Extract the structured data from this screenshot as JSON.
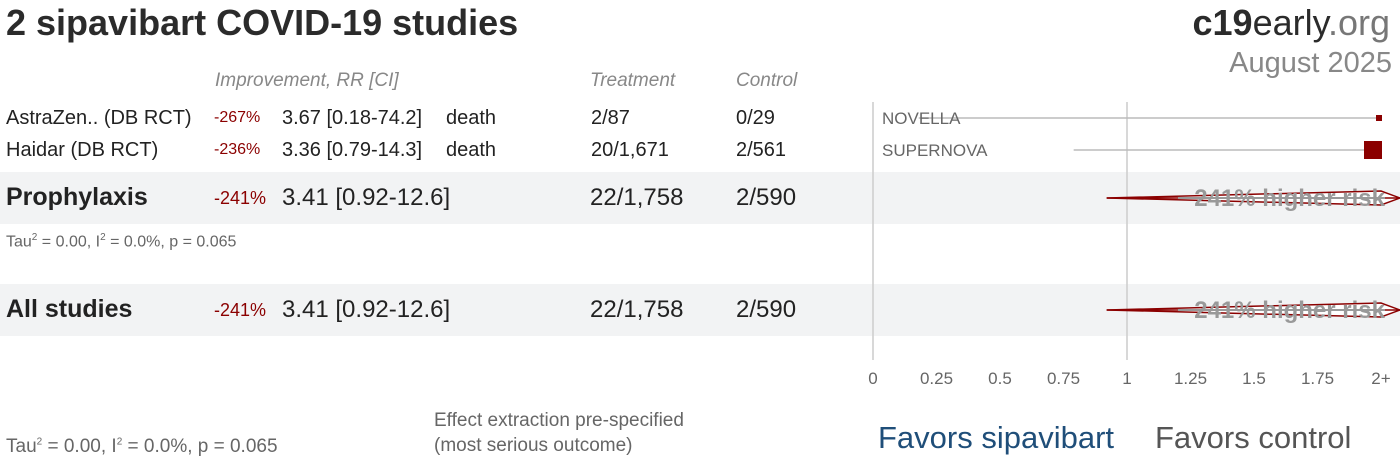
{
  "title": "2 sipavibart COVID-19 studies",
  "brand": {
    "bold": "c19",
    "mid": "early",
    "suffix": ".org",
    "date": "August 2025"
  },
  "headers": {
    "improvement": "Improvement, RR [CI]",
    "treatment": "Treatment",
    "control": "Control"
  },
  "studies": [
    {
      "name": "AstraZen.. (DB RCT)",
      "improvement": "-267%",
      "rr": "3.67 [0.18-74.2]",
      "outcome": "death",
      "treatment": "2/87",
      "control": "0/29",
      "trial": "NOVELLA"
    },
    {
      "name": "Haidar (DB RCT)",
      "improvement": "-236%",
      "rr": "3.36 [0.79-14.3]",
      "outcome": "death",
      "treatment": "20/1,671",
      "control": "2/561",
      "trial": "SUPERNOVA"
    }
  ],
  "groups": [
    {
      "name": "Prophylaxis",
      "improvement": "-241%",
      "rr": "3.41 [0.92-12.6]",
      "treatment": "22/1,758",
      "control": "2/590",
      "risk_label": "241% higher risk",
      "stats": {
        "tau": "Tau",
        "tau_val": " = 0.00, I",
        "i_val": " = 0.0%, p = 0.065"
      }
    },
    {
      "name": "All studies",
      "improvement": "-241%",
      "rr": "3.41 [0.92-12.6]",
      "treatment": "22/1,758",
      "control": "2/590",
      "risk_label": "241% higher risk"
    }
  ],
  "footer": {
    "stats": {
      "tau": "Tau",
      "tau_val": " = 0.00, I",
      "i_val": " = 0.0%, p = 0.065",
      "sup": "2"
    },
    "note_line1": "Effect extraction pre-specified",
    "note_line2": "(most serious outcome)",
    "favors_left": "Favors sipavibart",
    "favors_right": "Favors control"
  },
  "chart_data": {
    "type": "forest",
    "axis": {
      "ticks": [
        "0",
        "0.25",
        "0.5",
        "0.75",
        "1",
        "1.25",
        "1.5",
        "1.75",
        "2+"
      ],
      "tick_values": [
        0,
        0.25,
        0.5,
        0.75,
        1,
        1.25,
        1.5,
        1.75,
        2
      ],
      "xlim": [
        0,
        2
      ],
      "reference": 1
    },
    "studies": [
      {
        "label": "NOVELLA",
        "rr": 3.67,
        "ci_low": 0.18,
        "ci_high": 74.2
      },
      {
        "label": "SUPERNOVA",
        "rr": 3.36,
        "ci_low": 0.79,
        "ci_high": 14.3
      }
    ],
    "pooled": [
      {
        "label": "Prophylaxis",
        "rr": 3.41,
        "ci_low": 0.92,
        "ci_high": 12.6
      },
      {
        "label": "All studies",
        "rr": 3.41,
        "ci_low": 0.92,
        "ci_high": 12.6
      }
    ],
    "colors": {
      "marker": "#8b0000",
      "ci_line": "#bbbbbb",
      "axis": "#cccccc",
      "favors_left": "#1f4e79"
    }
  }
}
